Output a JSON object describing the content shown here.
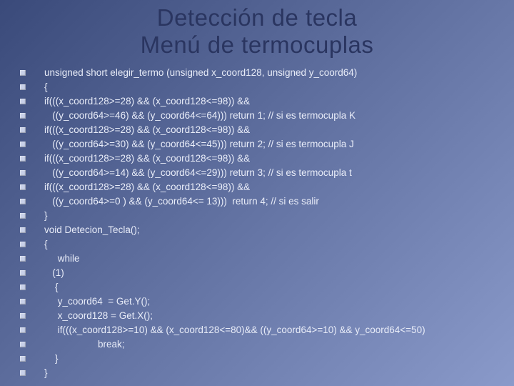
{
  "title": {
    "line1": "Detección de tecla",
    "line2": "Menú de termocuplas"
  },
  "colors": {
    "title_color": "#2a3560",
    "code_color": "#e8ecf8",
    "bullet_color": "#c8d0e8",
    "bg_gradient_start": "#3a4a7a",
    "bg_gradient_end": "#8a9aca"
  },
  "typography": {
    "title_fontsize": 33,
    "code_fontsize": 13.5,
    "font_family": "Verdana"
  },
  "code_lines": [
    "unsigned short elegir_termo (unsigned x_coord128, unsigned y_coord64)",
    "{",
    "if(((x_coord128>=28) && (x_coord128<=98)) &&",
    "   ((y_coord64>=46) && (y_coord64<=64))) return 1; // si es termocupla K",
    "if(((x_coord128>=28) && (x_coord128<=98)) &&",
    "   ((y_coord64>=30) && (y_coord64<=45))) return 2; // si es termocupla J",
    "if(((x_coord128>=28) && (x_coord128<=98)) &&",
    "   ((y_coord64>=14) && (y_coord64<=29))) return 3; // si es termocupla t",
    "if(((x_coord128>=28) && (x_coord128<=98)) &&",
    "   ((y_coord64>=0 ) && (y_coord64<= 13)))  return 4; // si es salir",
    "}",
    "void Detecion_Tecla();",
    "{",
    "     while",
    "   (1)",
    "    {",
    "     y_coord64  = Get.Y();",
    "     x_coord128 = Get.X();",
    "     if(((x_coord128>=10) && (x_coord128<=80)&& ((y_coord64>=10) && y_coord64<=50)",
    "                    break;",
    "    }",
    "}"
  ]
}
